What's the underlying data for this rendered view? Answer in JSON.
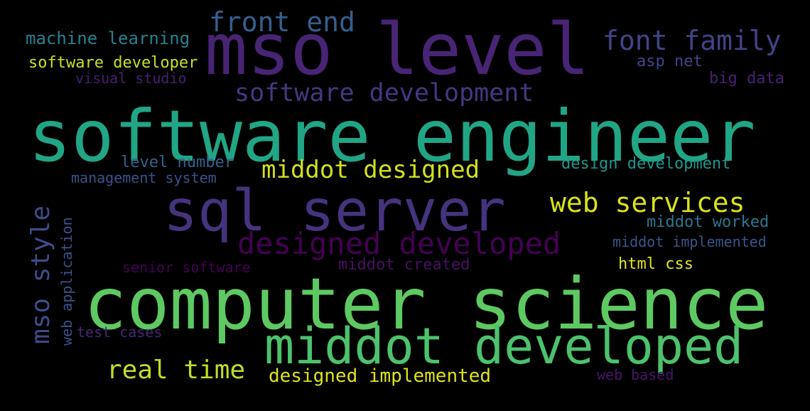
{
  "words": [
    {
      "text": "mso level",
      "color": "#482475"
    },
    {
      "text": "software engineer",
      "color": "#21a685"
    },
    {
      "text": "computer science",
      "color": "#5ec962"
    },
    {
      "text": "sql server",
      "color": "#46337e"
    },
    {
      "text": "middot developed",
      "color": "#4cc26c"
    },
    {
      "text": "front end",
      "color": "#355f8d"
    },
    {
      "text": "font family",
      "color": "#414487"
    },
    {
      "text": "machine learning",
      "color": "#26828e"
    },
    {
      "text": "software developer",
      "color": "#c8e020"
    },
    {
      "text": "asp net",
      "color": "#3f4788"
    },
    {
      "text": "visual studio",
      "color": "#481f70"
    },
    {
      "text": "big data",
      "color": "#482173"
    },
    {
      "text": "software development",
      "color": "#453781"
    },
    {
      "text": "level number",
      "color": "#33638d"
    },
    {
      "text": "middot designed",
      "color": "#d0e11c"
    },
    {
      "text": "design development",
      "color": "#1f988b"
    },
    {
      "text": "management system",
      "color": "#3b528b"
    },
    {
      "text": "web services",
      "color": "#d8e219"
    },
    {
      "text": "mso style",
      "color": "#3e4c8a"
    },
    {
      "text": "web application",
      "color": "#3b528b"
    },
    {
      "text": "designed developed",
      "color": "#440154"
    },
    {
      "text": "middot worked",
      "color": "#2a788e"
    },
    {
      "text": "middot implemented",
      "color": "#3a548c"
    },
    {
      "text": "senior software",
      "color": "#440154"
    },
    {
      "text": "middot created",
      "color": "#471063"
    },
    {
      "text": "html css",
      "color": "#e2e418"
    },
    {
      "text": "test cases",
      "color": "#482878"
    },
    {
      "text": "real time",
      "color": "#bddf26"
    },
    {
      "text": "designed implemented",
      "color": "#dde318"
    },
    {
      "text": "web based",
      "color": "#481668"
    }
  ]
}
